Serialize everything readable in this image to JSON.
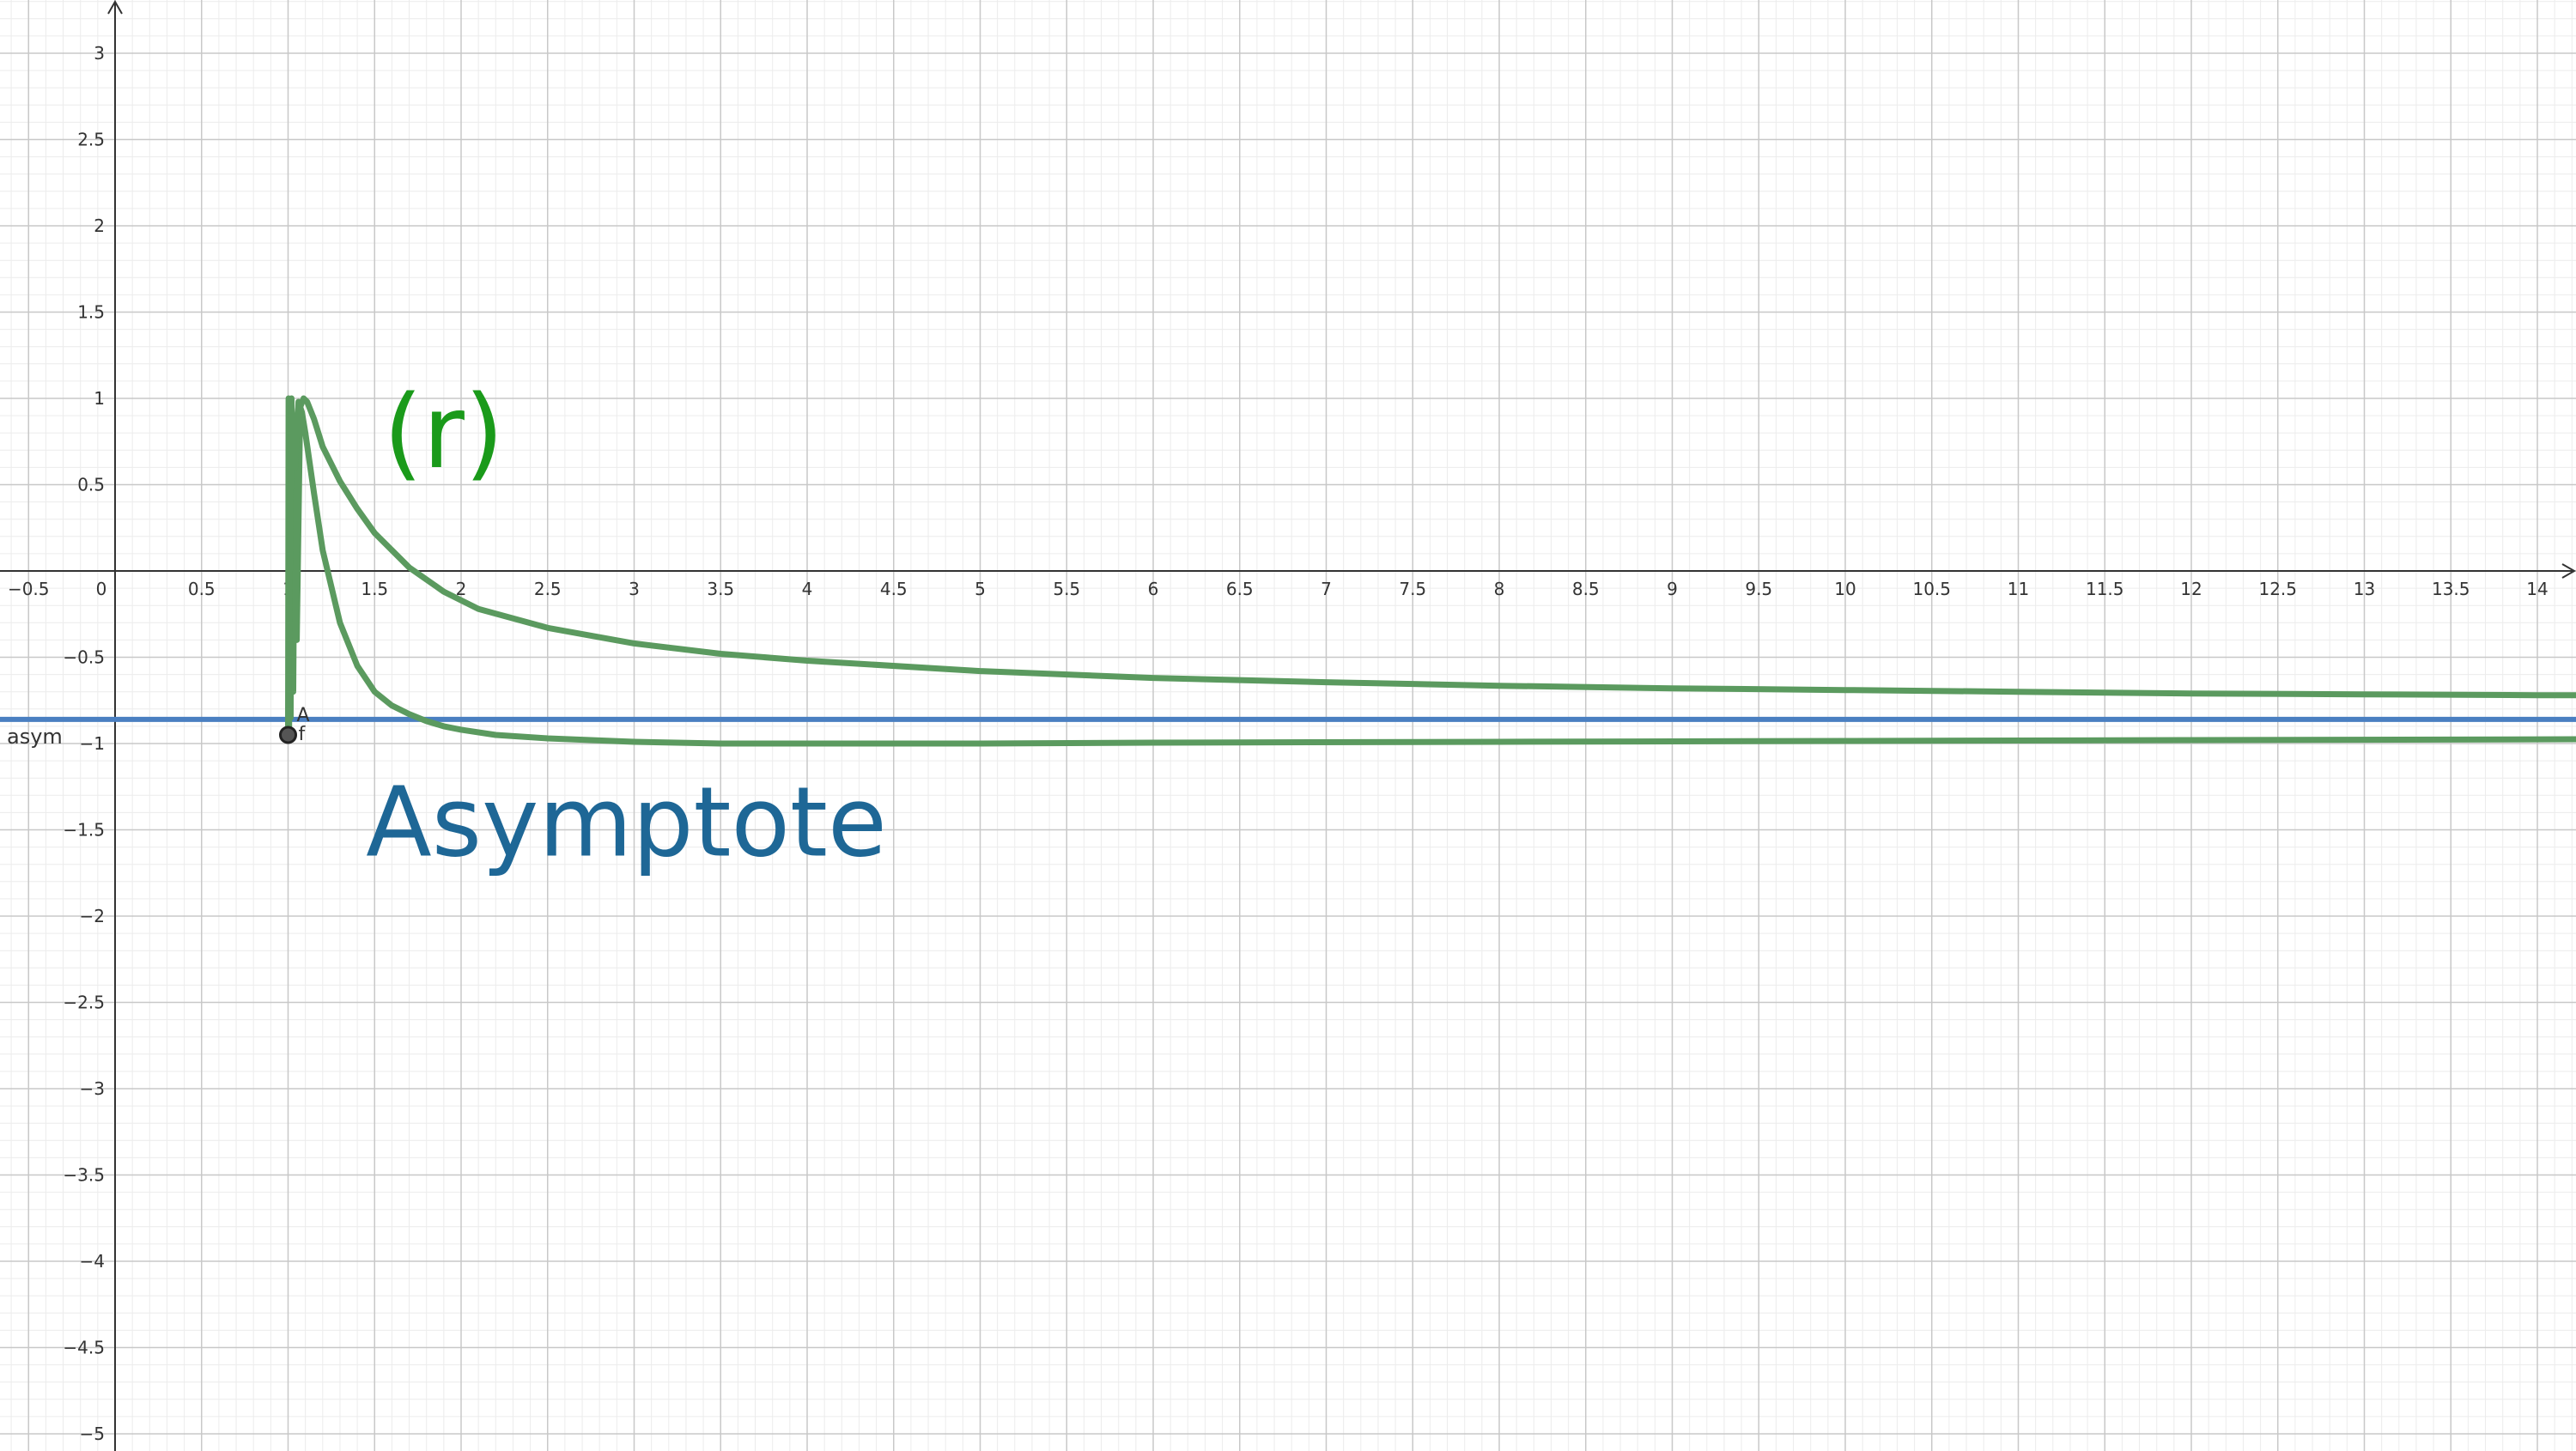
{
  "chart_data": {
    "type": "line",
    "title": "",
    "xlabel": "",
    "ylabel": "",
    "xlim": [
      -0.65,
      14.3
    ],
    "ylim": [
      -5.1,
      3.35
    ],
    "grid": true,
    "x_ticks": [
      -0.5,
      0,
      0.5,
      1,
      1.5,
      2,
      2.5,
      3,
      3.5,
      4,
      4.5,
      5,
      5.5,
      6,
      6.5,
      7,
      7.5,
      8,
      8.5,
      9,
      9.5,
      10,
      10.5,
      11,
      11.5,
      12,
      12.5,
      13,
      13.5,
      14
    ],
    "x_tick_labels": [
      "−0.5",
      "0",
      "0.5",
      "1",
      "1.5",
      "2",
      "2.5",
      "3",
      "3.5",
      "4",
      "4.5",
      "5",
      "5.5",
      "6",
      "6.5",
      "7",
      "7.5",
      "8",
      "8.5",
      "9",
      "9.5",
      "10",
      "10.5",
      "11",
      "11.5",
      "12",
      "12.5",
      "13",
      "13.5",
      "14"
    ],
    "y_ticks": [
      3,
      2.5,
      2,
      1.5,
      1,
      0.5,
      -0.5,
      -1,
      -1.5,
      -2,
      -2.5,
      -3,
      -3.5,
      -4,
      -4.5,
      -5
    ],
    "y_tick_labels": [
      "3",
      "2.5",
      "2",
      "1.5",
      "1",
      "0.5",
      "−0.5",
      "−1",
      "−1.5",
      "−2",
      "−2.5",
      "−3",
      "−3.5",
      "−4",
      "−4.5",
      "−5"
    ],
    "curves": [
      {
        "color": "#5b9a5f",
        "x": [
          1.0,
          1.003,
          1.006,
          1.01,
          1.015,
          1.02,
          1.03,
          1.04,
          1.05,
          1.07,
          1.09,
          1.11,
          1.15,
          1.2,
          1.3,
          1.4,
          1.5,
          1.7,
          1.9,
          2.1,
          2.5,
          3.0,
          3.5,
          4.0,
          5.0,
          6.0,
          7.0,
          8.0,
          9.0,
          10.0,
          11.0,
          12.0,
          13.0,
          14.0,
          14.3
        ],
        "y": [
          -0.95,
          1.0,
          -0.9,
          0.95,
          -0.85,
          1.0,
          -0.7,
          0.9,
          -0.4,
          0.95,
          1.0,
          0.98,
          0.88,
          0.72,
          0.52,
          0.36,
          0.22,
          0.02,
          -0.12,
          -0.22,
          -0.33,
          -0.42,
          -0.48,
          -0.52,
          -0.58,
          -0.62,
          -0.645,
          -0.665,
          -0.68,
          -0.69,
          -0.7,
          -0.71,
          -0.715,
          -0.72,
          -0.72
        ]
      },
      {
        "color": "#5b9a5f",
        "x": [
          1.0,
          1.02,
          1.04,
          1.06,
          1.08,
          1.1,
          1.15,
          1.2,
          1.3,
          1.4,
          1.5,
          1.6,
          1.7,
          1.8,
          1.9,
          2.0,
          2.2,
          2.5,
          3.0,
          3.5,
          4.0,
          5.0,
          6.0,
          8.0,
          10.0,
          12.0,
          14.3
        ],
        "y": [
          -0.95,
          0.95,
          0.6,
          0.98,
          0.92,
          0.8,
          0.45,
          0.12,
          -0.3,
          -0.55,
          -0.7,
          -0.78,
          -0.83,
          -0.87,
          -0.9,
          -0.92,
          -0.95,
          -0.97,
          -0.99,
          -1.0,
          -1.0,
          -1.0,
          -0.995,
          -0.99,
          -0.985,
          -0.98,
          -0.975
        ]
      }
    ],
    "asymptote": {
      "y": -0.86,
      "color": "#4a7fc1",
      "label": "asym"
    },
    "points": [
      {
        "name": "A",
        "x": 1.0,
        "y": -0.95,
        "label": "A"
      }
    ],
    "point_caption": "f",
    "annotations": [
      {
        "text": "(r)",
        "x": 1.55,
        "y": 0.85,
        "color": "#1a9a1a"
      },
      {
        "text": "Asymptote",
        "x": 1.45,
        "y": -1.45,
        "color": "#1e6796"
      }
    ]
  }
}
